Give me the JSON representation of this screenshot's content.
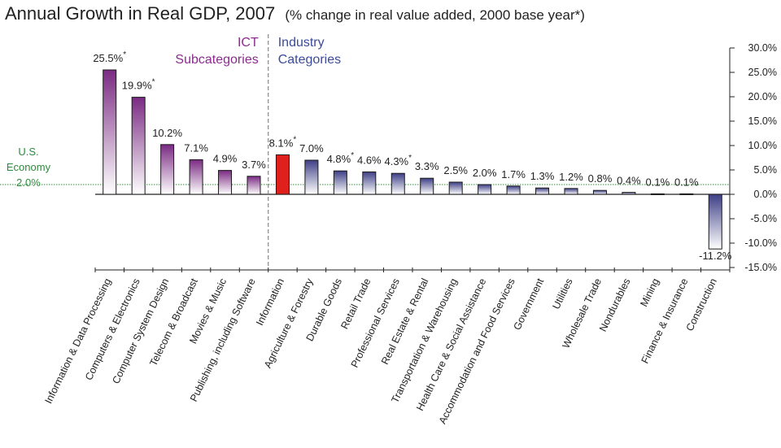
{
  "chart_data": {
    "type": "bar",
    "title": "Annual Growth in Real GDP, 2007",
    "subtitle": "(% change in real value added, 2000 base year*)",
    "categories": [
      "Information & Data Processing",
      "Computers & Electronics",
      "Computer System Design",
      "Telecom & Broadcast",
      "Movies & Music",
      "Publishing, including Software",
      "Information",
      "Agriculture & Forestry",
      "Durable Goods",
      "Retail Trade",
      "Professional Services",
      "Real Estate & Rental",
      "Transportation & Warehousing",
      "Health Care & Social Assistance",
      "Accommodation and Food Services",
      "Government",
      "Utilities",
      "Wholesale Trade",
      "Nondurables",
      "Mining",
      "Finance & Insurance",
      "Construction"
    ],
    "values": [
      25.5,
      19.9,
      10.2,
      7.1,
      4.9,
      3.7,
      8.1,
      7.0,
      4.8,
      4.6,
      4.3,
      3.3,
      2.5,
      2.0,
      1.7,
      1.3,
      1.2,
      0.8,
      0.4,
      0.1,
      0.1,
      -11.2
    ],
    "value_labels": [
      "25.5%",
      "19.9%",
      "10.2%",
      "7.1%",
      "4.9%",
      "3.7%",
      "8.1%",
      "7.0%",
      "4.8%",
      "4.6%",
      "4.3%",
      "3.3%",
      "2.5%",
      "2.0%",
      "1.7%",
      "1.3%",
      "1.2%",
      "0.8%",
      "0.4%",
      "0.1%",
      "0.1%",
      "-11.2%"
    ],
    "asterisk_marker": "*",
    "asterisked": [
      0,
      1,
      6,
      8,
      10
    ],
    "groups": [
      {
        "name": "ICT Subcategories",
        "lines": [
          "ICT",
          "Subcategories"
        ],
        "color": "#8b2c8f",
        "members": [
          0,
          1,
          2,
          3,
          4,
          5
        ]
      },
      {
        "name": "Industry Categories",
        "lines": [
          "Industry",
          "Categories"
        ],
        "color": "#3b4a9a",
        "members": [
          7,
          8,
          9,
          10,
          11,
          12,
          13,
          14,
          15,
          16,
          17,
          18,
          19,
          20,
          21
        ]
      }
    ],
    "highlight": {
      "index": 6,
      "color": "#e0201c"
    },
    "reference_line": {
      "value": 2.0,
      "label_lines": [
        "U.S.",
        "Economy",
        "2.0%"
      ],
      "color": "#2e8b3e"
    },
    "y_axis": {
      "position": "right",
      "ylim": [
        -15,
        30
      ],
      "ticks": [
        30,
        25,
        20,
        15,
        10,
        5,
        0,
        -5,
        -10,
        -15
      ],
      "tick_labels": [
        "30.0%",
        "25.0%",
        "20.0%",
        "15.0%",
        "10.0%",
        "5.0%",
        "0.0%",
        "-5.0%",
        "-10.0%",
        "-15.0%"
      ]
    },
    "xlabel": "",
    "ylabel": "",
    "grid": false,
    "colors": {
      "ict": "#7a2a82",
      "industry": "#3e3f86",
      "highlight": "#e0201c",
      "text": "#222222",
      "divider": "#888888"
    }
  }
}
